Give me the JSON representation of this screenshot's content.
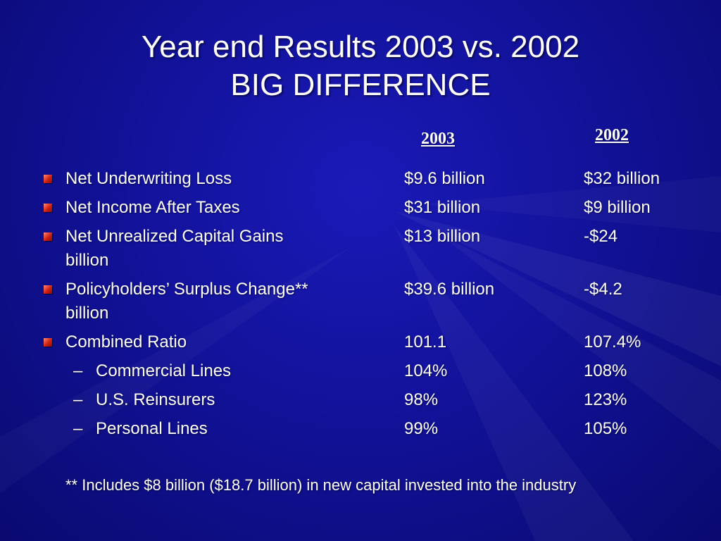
{
  "title": {
    "line1": "Year end Results 2003 vs.  2002",
    "line2": "BIG DIFFERENCE"
  },
  "columns": {
    "col1": "2003",
    "col2": "2002"
  },
  "rows": [
    {
      "label": "Net Underwriting Loss",
      "v2003": "$9.6 billion",
      "v2002": "$32 billion"
    },
    {
      "label": "Net Income After Taxes",
      "v2003": "$31 billion",
      "v2002": "$9 billion"
    },
    {
      "label": "Net Unrealized Capital Gains",
      "v2003": "$13 billion",
      "v2002": "-$24",
      "wrap": "billion"
    },
    {
      "label": "Policyholders’ Surplus Change**",
      "v2003": "$39.6 billion",
      "v2002": "-$4.2",
      "wrap": "billion"
    },
    {
      "label": "Combined  Ratio",
      "v2003": "101.1",
      "v2002": "107.4%"
    }
  ],
  "subrows": [
    {
      "dash": "–",
      "label": "Commercial Lines",
      "v2003": "104%",
      "v2002": "108%"
    },
    {
      "dash": "–",
      "label": "U.S. Reinsurers",
      "v2003": "98%",
      "v2002": "123%"
    },
    {
      "dash": "–",
      "label": "Personal Lines",
      "v2003": "99%",
      "v2002": "105%"
    }
  ],
  "footnote": "** Includes $8 billion ($18.7 billion) in new capital invested into the industry",
  "colors": {
    "background": "#12129a",
    "text": "#ffffff",
    "bullet": "#d02010"
  },
  "icons": {
    "bullet": "red-square-bullet-icon"
  }
}
